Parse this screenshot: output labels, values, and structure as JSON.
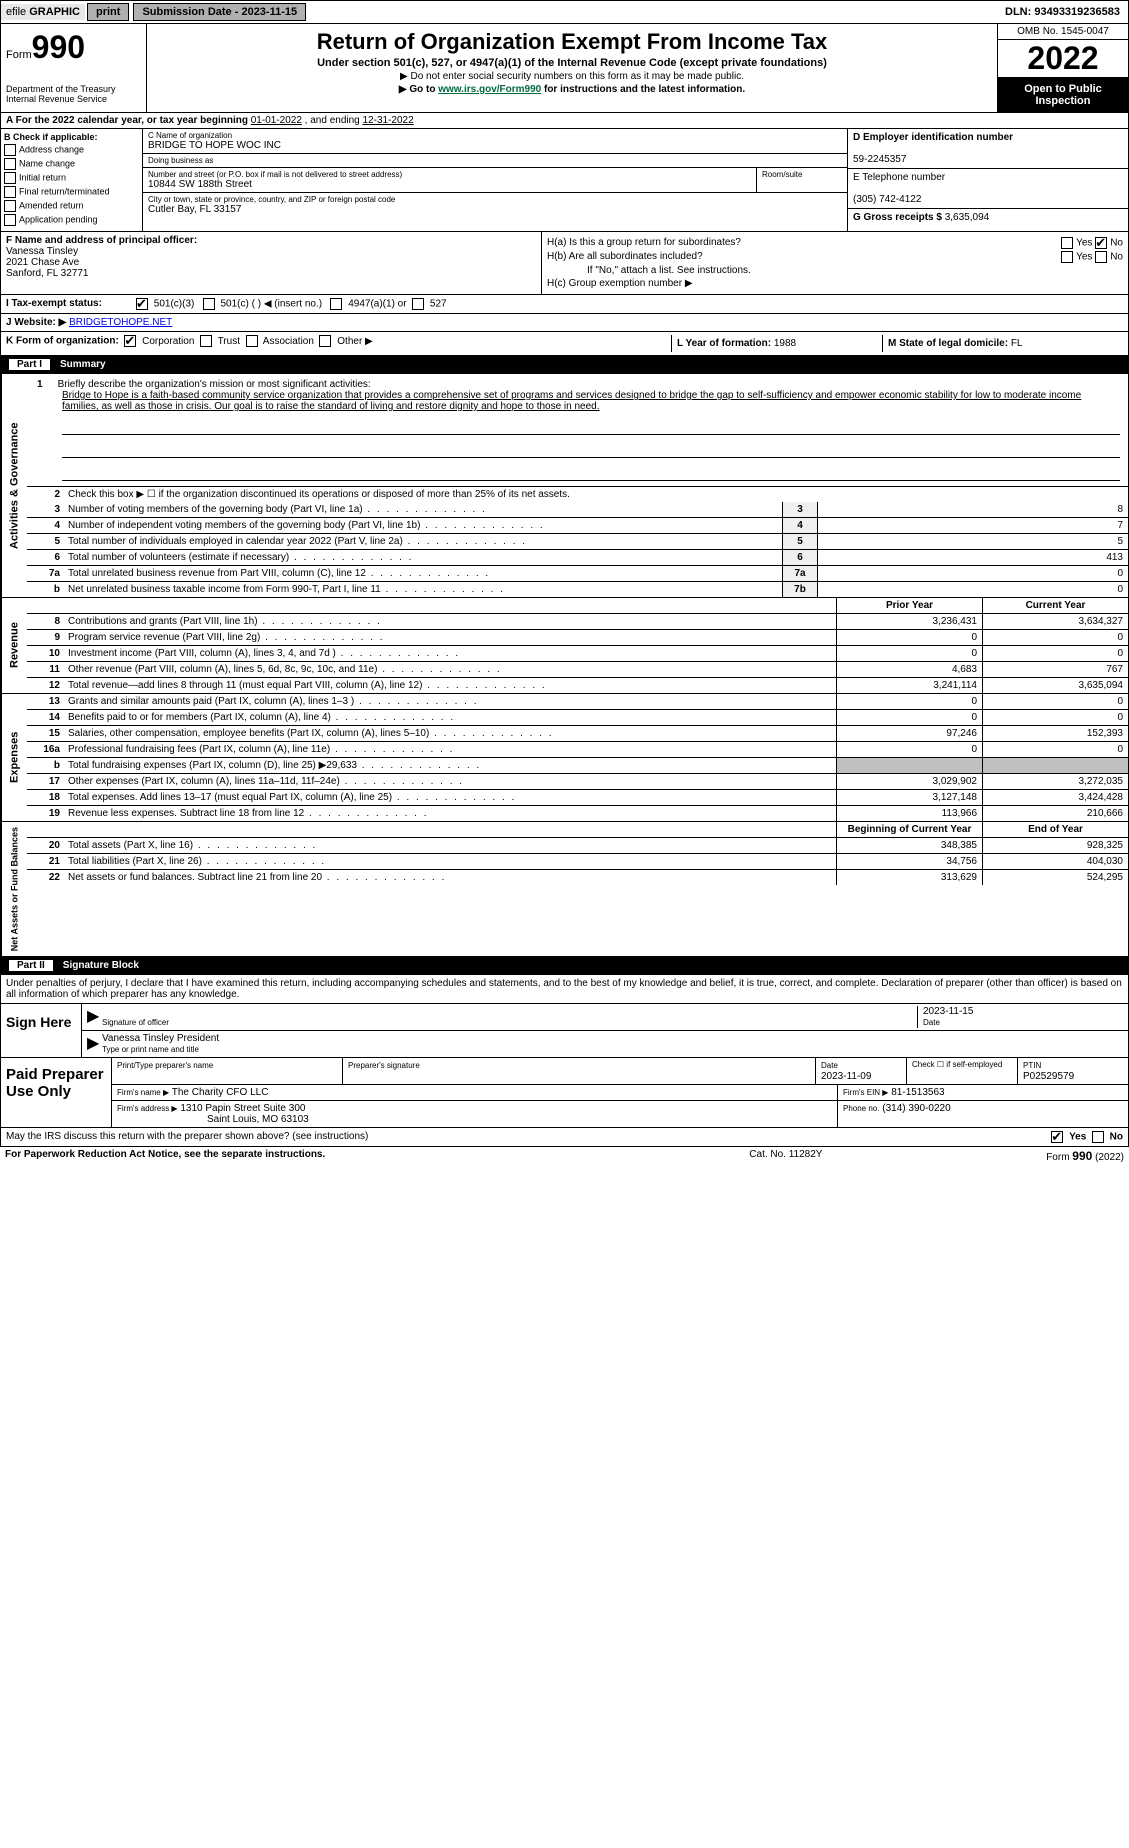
{
  "topbar": {
    "efile_prefix": "efile",
    "efile_graphic": "GRAPHIC",
    "print": "print",
    "submission_label": "Submission Date - 2023-11-15",
    "dln": "DLN: 93493319236583"
  },
  "header": {
    "form_word": "Form",
    "form_num": "990",
    "title": "Return of Organization Exempt From Income Tax",
    "subtitle": "Under section 501(c), 527, or 4947(a)(1) of the Internal Revenue Code (except private foundations)",
    "warn1": "▶ Do not enter social security numbers on this form as it may be made public.",
    "warn2_pre": "▶ Go to ",
    "warn2_link": "www.irs.gov/Form990",
    "warn2_post": " for instructions and the latest information.",
    "dept1": "Department of the Treasury",
    "dept2": "Internal Revenue Service",
    "omb": "OMB No. 1545-0047",
    "year": "2022",
    "open_public": "Open to Public Inspection"
  },
  "row_a": {
    "text_pre": "A For the 2022 calendar year, or tax year beginning ",
    "begin": "01-01-2022",
    "text_mid": "   , and ending ",
    "end": "12-31-2022"
  },
  "box_b": {
    "label": "B Check if applicable:",
    "opts": [
      "Address change",
      "Name change",
      "Initial return",
      "Final return/terminated",
      "Amended return",
      "Application pending"
    ],
    "c_label": "C Name of organization",
    "org_name": "BRIDGE TO HOPE WOC INC",
    "dba_label": "Doing business as",
    "dba": "",
    "addr_label": "Number and street (or P.O. box if mail is not delivered to street address)",
    "addr": "10844 SW 188th Street",
    "room_label": "Room/suite",
    "city_label": "City or town, state or province, country, and ZIP or foreign postal code",
    "city": "Cutler Bay, FL  33157",
    "d_label": "D Employer identification number",
    "ein": "59-2245357",
    "e_label": "E Telephone number",
    "phone": "(305) 742-4122",
    "g_label": "G Gross receipts $",
    "gross": "3,635,094"
  },
  "f_block": {
    "f_label": "F  Name and address of principal officer:",
    "name": "Vanessa Tinsley",
    "addr1": "2021 Chase Ave",
    "addr2": "Sanford, FL  32771",
    "ha": "H(a)  Is this a group return for subordinates?",
    "hb": "H(b)  Are all subordinates included?",
    "hb_note": "If \"No,\" attach a list. See instructions.",
    "hc": "H(c)  Group exemption number ▶",
    "yes": "Yes",
    "no": "No"
  },
  "i_row": {
    "label": "I   Tax-exempt status:",
    "opt1": "501(c)(3)",
    "opt2": "501(c) (  ) ◀ (insert no.)",
    "opt3": "4947(a)(1) or",
    "opt4": "527"
  },
  "j_row": {
    "label": "J   Website: ▶",
    "url": "BRIDGETOHOPE.NET"
  },
  "k_row": {
    "label": "K Form of organization:",
    "opts": [
      "Corporation",
      "Trust",
      "Association",
      "Other ▶"
    ],
    "l_label": "L Year of formation:",
    "l_val": "1988",
    "m_label": "M State of legal domicile:",
    "m_val": "FL"
  },
  "part1": {
    "part": "Part I",
    "title": "Summary",
    "q1_num": "1",
    "q1": "Briefly describe the organization's mission or most significant activities:",
    "mission": "Bridge to Hope is a faith-based community service organization that provides a comprehensive set of programs and services designed to bridge the gap to self-sufficiency and empower economic stability for low to moderate income families, as well as those in crisis. Our goal is to raise the standard of living and restore dignity and hope to those in need.",
    "q2_num": "2",
    "q2": "Check this box ▶ ☐  if the organization discontinued its operations or disposed of more than 25% of its net assets.",
    "rows_single": [
      {
        "n": "3",
        "d": "Number of voting members of the governing body (Part VI, line 1a)",
        "b": "3",
        "v": "8"
      },
      {
        "n": "4",
        "d": "Number of independent voting members of the governing body (Part VI, line 1b)",
        "b": "4",
        "v": "7"
      },
      {
        "n": "5",
        "d": "Total number of individuals employed in calendar year 2022 (Part V, line 2a)",
        "b": "5",
        "v": "5"
      },
      {
        "n": "6",
        "d": "Total number of volunteers (estimate if necessary)",
        "b": "6",
        "v": "413"
      },
      {
        "n": "7a",
        "d": "Total unrelated business revenue from Part VIII, column (C), line 12",
        "b": "7a",
        "v": "0"
      },
      {
        "n": "b",
        "d": "Net unrelated business taxable income from Form 990-T, Part I, line 11",
        "b": "7b",
        "v": "0"
      }
    ],
    "col_prior": "Prior Year",
    "col_current": "Current Year",
    "rev_rows": [
      {
        "n": "8",
        "d": "Contributions and grants (Part VIII, line 1h)",
        "p": "3,236,431",
        "c": "3,634,327"
      },
      {
        "n": "9",
        "d": "Program service revenue (Part VIII, line 2g)",
        "p": "0",
        "c": "0"
      },
      {
        "n": "10",
        "d": "Investment income (Part VIII, column (A), lines 3, 4, and 7d )",
        "p": "0",
        "c": "0"
      },
      {
        "n": "11",
        "d": "Other revenue (Part VIII, column (A), lines 5, 6d, 8c, 9c, 10c, and 11e)",
        "p": "4,683",
        "c": "767"
      },
      {
        "n": "12",
        "d": "Total revenue—add lines 8 through 11 (must equal Part VIII, column (A), line 12)",
        "p": "3,241,114",
        "c": "3,635,094"
      }
    ],
    "exp_rows": [
      {
        "n": "13",
        "d": "Grants and similar amounts paid (Part IX, column (A), lines 1–3 )",
        "p": "0",
        "c": "0"
      },
      {
        "n": "14",
        "d": "Benefits paid to or for members (Part IX, column (A), line 4)",
        "p": "0",
        "c": "0"
      },
      {
        "n": "15",
        "d": "Salaries, other compensation, employee benefits (Part IX, column (A), lines 5–10)",
        "p": "97,246",
        "c": "152,393"
      },
      {
        "n": "16a",
        "d": "Professional fundraising fees (Part IX, column (A), line 11e)",
        "p": "0",
        "c": "0"
      },
      {
        "n": "b",
        "d": "Total fundraising expenses (Part IX, column (D), line 25) ▶29,633",
        "p": "",
        "c": "",
        "gray": true
      },
      {
        "n": "17",
        "d": "Other expenses (Part IX, column (A), lines 11a–11d, 11f–24e)",
        "p": "3,029,902",
        "c": "3,272,035"
      },
      {
        "n": "18",
        "d": "Total expenses. Add lines 13–17 (must equal Part IX, column (A), line 25)",
        "p": "3,127,148",
        "c": "3,424,428"
      },
      {
        "n": "19",
        "d": "Revenue less expenses. Subtract line 18 from line 12",
        "p": "113,966",
        "c": "210,666"
      }
    ],
    "col_begin": "Beginning of Current Year",
    "col_end": "End of Year",
    "net_rows": [
      {
        "n": "20",
        "d": "Total assets (Part X, line 16)",
        "p": "348,385",
        "c": "928,325"
      },
      {
        "n": "21",
        "d": "Total liabilities (Part X, line 26)",
        "p": "34,756",
        "c": "404,030"
      },
      {
        "n": "22",
        "d": "Net assets or fund balances. Subtract line 21 from line 20",
        "p": "313,629",
        "c": "524,295"
      }
    ],
    "side_ag": "Activities & Governance",
    "side_rev": "Revenue",
    "side_exp": "Expenses",
    "side_net": "Net Assets or Fund Balances"
  },
  "part2": {
    "part": "Part II",
    "title": "Signature Block",
    "declare": "Under penalties of perjury, I declare that I have examined this return, including accompanying schedules and statements, and to the best of my knowledge and belief, it is true, correct, and complete. Declaration of preparer (other than officer) is based on all information of which preparer has any knowledge.",
    "sign_here": "Sign Here",
    "sig_officer": "Signature of officer",
    "sig_date": "2023-11-15",
    "date_label": "Date",
    "name_title": "Vanessa Tinsley  President",
    "name_title_label": "Type or print name and title",
    "paid": "Paid Preparer Use Only",
    "pt_name_label": "Print/Type preparer's name",
    "pt_sig_label": "Preparer's signature",
    "pt_date_label": "Date",
    "pt_date": "2023-11-09",
    "pt_check_label": "Check ☐ if self-employed",
    "ptin_label": "PTIN",
    "ptin": "P02529579",
    "firm_name_label": "Firm's name    ▶",
    "firm_name": "The Charity CFO LLC",
    "firm_ein_label": "Firm's EIN ▶",
    "firm_ein": "81-1513563",
    "firm_addr_label": "Firm's address ▶",
    "firm_addr1": "1310 Papin Street Suite 300",
    "firm_addr2": "Saint Louis, MO  63103",
    "phone_label": "Phone no.",
    "phone": "(314) 390-0220",
    "discuss": "May the IRS discuss this return with the preparer shown above? (see instructions)",
    "yes": "Yes",
    "no": "No"
  },
  "footer": {
    "left": "For Paperwork Reduction Act Notice, see the separate instructions.",
    "mid": "Cat. No. 11282Y",
    "right_pre": "Form ",
    "right_num": "990",
    "right_post": " (2022)"
  },
  "colors": {
    "link_green": "#006b3f",
    "link_blue": "#0000ee",
    "black": "#000000",
    "white": "#ffffff",
    "gray_btn": "#b0b0b0",
    "gray_fill": "#c0c0c0",
    "gray_light": "#e8e8e8",
    "box_gray": "#f0f0f0"
  }
}
